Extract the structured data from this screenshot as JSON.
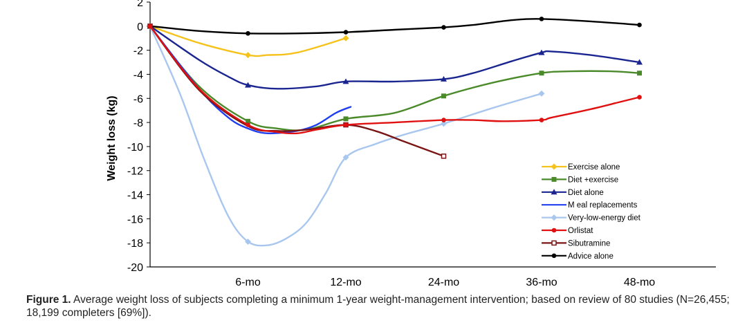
{
  "chart_data": {
    "type": "line",
    "ylabel": "Weight loss (kg)",
    "ylim": [
      -20,
      2
    ],
    "yticks": [
      2,
      0,
      -2,
      -4,
      -6,
      -8,
      -10,
      -12,
      -14,
      -16,
      -18,
      -20
    ],
    "xticks": [
      "6-mo",
      "12-mo",
      "24-mo",
      "36-mo",
      "48-mo"
    ],
    "grid": false,
    "legend_position": "bottom-right",
    "series": [
      {
        "name": "Exercise alone",
        "color": "#f5c21b",
        "marker": "diamond",
        "points": [
          [
            0,
            0
          ],
          [
            0.5,
            -1.4
          ],
          [
            1,
            -2.4
          ],
          [
            1.2,
            -2.4
          ],
          [
            1.5,
            -2.2
          ],
          [
            2,
            -1.0
          ]
        ],
        "markers": [
          [
            0,
            0
          ],
          [
            1,
            -2.4
          ],
          [
            2,
            -1.0
          ]
        ]
      },
      {
        "name": "Diet +exercise",
        "color": "#4a8a2a",
        "marker": "square",
        "points": [
          [
            0,
            0
          ],
          [
            0.5,
            -5.0
          ],
          [
            1,
            -7.9
          ],
          [
            1.3,
            -8.5
          ],
          [
            1.6,
            -8.6
          ],
          [
            2,
            -7.7
          ],
          [
            2.5,
            -7.2
          ],
          [
            3,
            -5.8
          ],
          [
            3.5,
            -4.7
          ],
          [
            4,
            -3.9
          ],
          [
            4.3,
            -3.75
          ],
          [
            4.7,
            -3.75
          ],
          [
            5,
            -3.9
          ]
        ],
        "markers": [
          [
            0,
            0
          ],
          [
            1,
            -7.9
          ],
          [
            2,
            -7.7
          ],
          [
            3,
            -5.8
          ],
          [
            4,
            -3.9
          ],
          [
            5,
            -3.9
          ]
        ]
      },
      {
        "name": "Diet alone",
        "color": "#1a2590",
        "marker": "triangle",
        "points": [
          [
            0,
            0
          ],
          [
            0.5,
            -2.8
          ],
          [
            0.8,
            -4.2
          ],
          [
            1,
            -4.9
          ],
          [
            1.3,
            -5.2
          ],
          [
            1.7,
            -5.0
          ],
          [
            2,
            -4.6
          ],
          [
            2.5,
            -4.6
          ],
          [
            3,
            -4.4
          ],
          [
            3.3,
            -3.9
          ],
          [
            3.7,
            -2.9
          ],
          [
            4,
            -2.2
          ],
          [
            4.1,
            -2.1
          ],
          [
            4.5,
            -2.4
          ],
          [
            5,
            -3.0
          ]
        ],
        "markers": [
          [
            0,
            0
          ],
          [
            1,
            -4.9
          ],
          [
            2,
            -4.6
          ],
          [
            3,
            -4.4
          ],
          [
            4,
            -2.2
          ],
          [
            5,
            -3.0
          ]
        ]
      },
      {
        "name": "M eal replacements",
        "color": "#1f3ff0",
        "marker": "none",
        "points": [
          [
            0,
            0
          ],
          [
            0.5,
            -5.2
          ],
          [
            0.8,
            -7.6
          ],
          [
            1,
            -8.5
          ],
          [
            1.2,
            -8.9
          ],
          [
            1.5,
            -8.7
          ],
          [
            1.7,
            -8.2
          ],
          [
            1.9,
            -7.2
          ],
          [
            2.05,
            -6.7
          ]
        ],
        "markers": []
      },
      {
        "name": "Very-low-energy diet",
        "color": "#a9c7ee",
        "marker": "diamond",
        "points": [
          [
            0,
            0
          ],
          [
            0.3,
            -5.5
          ],
          [
            0.55,
            -11.0
          ],
          [
            0.8,
            -15.8
          ],
          [
            1,
            -17.9
          ],
          [
            1.2,
            -18.2
          ],
          [
            1.4,
            -17.6
          ],
          [
            1.6,
            -16.3
          ],
          [
            1.8,
            -13.8
          ],
          [
            2,
            -10.9
          ],
          [
            2.3,
            -9.8
          ],
          [
            2.6,
            -9.0
          ],
          [
            3,
            -8.1
          ],
          [
            3.5,
            -6.8
          ],
          [
            4,
            -5.6
          ]
        ],
        "markers": [
          [
            0,
            0
          ],
          [
            1,
            -17.9
          ],
          [
            2,
            -10.9
          ],
          [
            3,
            -8.1
          ],
          [
            4,
            -5.6
          ]
        ]
      },
      {
        "name": "Orlistat",
        "color": "#e01010",
        "marker": "circle",
        "points": [
          [
            0,
            0
          ],
          [
            0.5,
            -5.2
          ],
          [
            1,
            -8.2
          ],
          [
            1.3,
            -8.8
          ],
          [
            1.5,
            -8.9
          ],
          [
            1.7,
            -8.6
          ],
          [
            2,
            -8.2
          ],
          [
            2.5,
            -8.0
          ],
          [
            3,
            -7.8
          ],
          [
            3.3,
            -7.8
          ],
          [
            3.6,
            -7.9
          ],
          [
            4,
            -7.8
          ],
          [
            4.1,
            -7.6
          ],
          [
            4.5,
            -6.9
          ],
          [
            4.8,
            -6.3
          ],
          [
            5,
            -5.9
          ]
        ],
        "markers": [
          [
            0,
            0
          ],
          [
            1,
            -8.2
          ],
          [
            2,
            -8.2
          ],
          [
            3,
            -7.8
          ],
          [
            4,
            -7.8
          ],
          [
            5,
            -5.9
          ]
        ]
      },
      {
        "name": "Sibutramine",
        "color": "#7a1515",
        "marker": "square-open",
        "points": [
          [
            0,
            0
          ],
          [
            0.5,
            -5.3
          ],
          [
            1,
            -8.3
          ],
          [
            1.3,
            -8.7
          ],
          [
            1.6,
            -8.6
          ],
          [
            2,
            -8.2
          ],
          [
            2.3,
            -8.7
          ],
          [
            2.6,
            -9.6
          ],
          [
            3,
            -10.8
          ]
        ],
        "markers": [
          [
            0,
            0
          ],
          [
            2,
            -8.2
          ],
          [
            3,
            -10.8
          ]
        ]
      },
      {
        "name": "Advice alone",
        "color": "#000000",
        "marker": "circle",
        "points": [
          [
            0,
            0
          ],
          [
            0.5,
            -0.4
          ],
          [
            1,
            -0.6
          ],
          [
            1.5,
            -0.6
          ],
          [
            2,
            -0.5
          ],
          [
            2.5,
            -0.3
          ],
          [
            3,
            -0.1
          ],
          [
            3.3,
            0.1
          ],
          [
            3.7,
            0.5
          ],
          [
            4,
            0.6
          ],
          [
            4.5,
            0.4
          ],
          [
            5,
            0.1
          ]
        ],
        "markers": [
          [
            0,
            0
          ],
          [
            1,
            -0.6
          ],
          [
            2,
            -0.5
          ],
          [
            3,
            -0.1
          ],
          [
            4,
            0.6
          ],
          [
            5,
            0.1
          ]
        ]
      }
    ]
  },
  "caption": {
    "figure_label": "Figure 1.",
    "text": " Average weight loss of subjects completing a minimum 1-year weight-management intervention; based on review of 80 studies (N=26,455; 18,199 completers [69%])."
  }
}
